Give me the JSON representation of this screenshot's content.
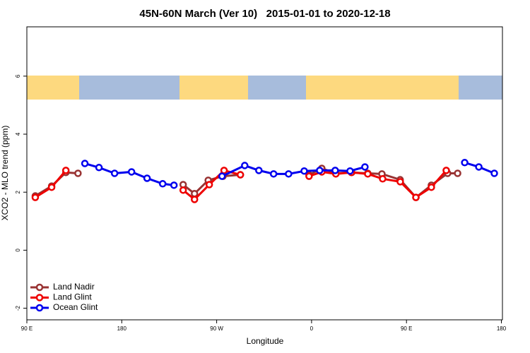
{
  "chart_data": {
    "type": "line",
    "title": "45N-60N March (Ver 10)   2015-01-01 to 2020-12-18",
    "x_label": "Longitude",
    "y_label": "XCO2 - MLO trend (ppm)",
    "xlim": [
      90,
      541
    ],
    "ylim": [
      -2.4,
      7.7
    ],
    "xticks": [
      {
        "value": 90,
        "label": "90 E"
      },
      {
        "value": 180,
        "label": "180"
      },
      {
        "value": 270,
        "label": "90 W"
      },
      {
        "value": 360,
        "label": "0"
      },
      {
        "value": 450,
        "label": "90 E"
      },
      {
        "value": 540,
        "label": "180"
      }
    ],
    "yticks": [
      -2,
      0,
      2,
      4,
      6
    ],
    "grid": false,
    "legend": "bottom-left",
    "series": [
      {
        "name": "Land Nadir",
        "color": "#993333",
        "x": [
          98,
          113.5,
          127,
          138.5,
          null,
          238.2,
          249,
          262,
          276,
          292.5,
          null,
          357.6,
          369.7,
          383,
          398,
          413.3,
          426.7,
          444,
          459,
          473.6,
          489,
          498.5
        ],
        "values": [
          1.87,
          2.21,
          2.68,
          2.65,
          null,
          2.26,
          1.95,
          2.41,
          2.55,
          2.6,
          null,
          2.6,
          2.82,
          2.65,
          2.68,
          2.65,
          2.63,
          2.43,
          1.82,
          2.24,
          2.65,
          2.65
        ]
      },
      {
        "name": "Land Glint",
        "color": "#ee0000",
        "x": [
          98,
          113.5,
          127,
          null,
          238.2,
          249,
          263,
          277,
          292.5,
          null,
          357.6,
          369.7,
          383,
          397.8,
          413.3,
          427.4,
          444.1,
          458.9,
          473.6,
          487.7
        ],
        "values": [
          1.82,
          2.17,
          2.75,
          null,
          2.07,
          1.75,
          2.26,
          2.75,
          2.6,
          null,
          2.55,
          2.7,
          2.63,
          2.68,
          2.63,
          2.46,
          2.36,
          1.82,
          2.17,
          2.75
        ]
      },
      {
        "name": "Ocean Glint",
        "color": "#0000ee",
        "x": [
          145,
          158.4,
          173.2,
          189.3,
          204,
          218.8,
          229.5,
          null,
          275.1,
          296.6,
          310,
          324,
          338.2,
          353,
          367.7,
          382.4,
          396.5,
          410.6,
          null,
          505.2,
          518.6,
          533.3
        ],
        "values": [
          2.99,
          2.85,
          2.65,
          2.7,
          2.48,
          2.29,
          2.24,
          null,
          2.55,
          2.92,
          2.75,
          2.63,
          2.63,
          2.73,
          2.75,
          2.75,
          2.73,
          2.87,
          null,
          3.02,
          2.87,
          2.65
        ]
      }
    ]
  }
}
